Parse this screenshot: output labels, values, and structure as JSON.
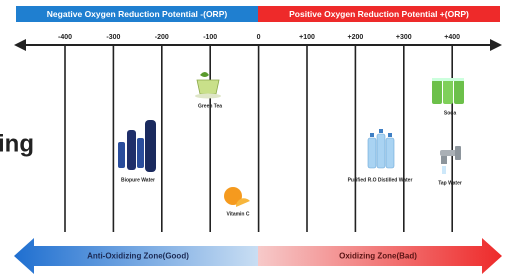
{
  "header": {
    "negative": "Negative Oxygen Reduction Potential -(ORP)",
    "positive": "Positive Oxygen Reduction Potential +(ORP)"
  },
  "scale": {
    "ticks": [
      "-400",
      "-300",
      "-200",
      "-100",
      "0",
      "+100",
      "+200",
      "+300",
      "+400"
    ]
  },
  "side_text": "ing",
  "items": [
    {
      "label": "Green Tea"
    },
    {
      "label": "Biopure Water"
    },
    {
      "label": "Vitamin C"
    },
    {
      "label": "Purified R.O Distilled Water"
    },
    {
      "label": "Soda"
    },
    {
      "label": "Tap Water"
    }
  ],
  "zones": {
    "good": "Anti-Oxidizing Zone(Good)",
    "bad": "Oxidizing Zone(Bad)"
  }
}
